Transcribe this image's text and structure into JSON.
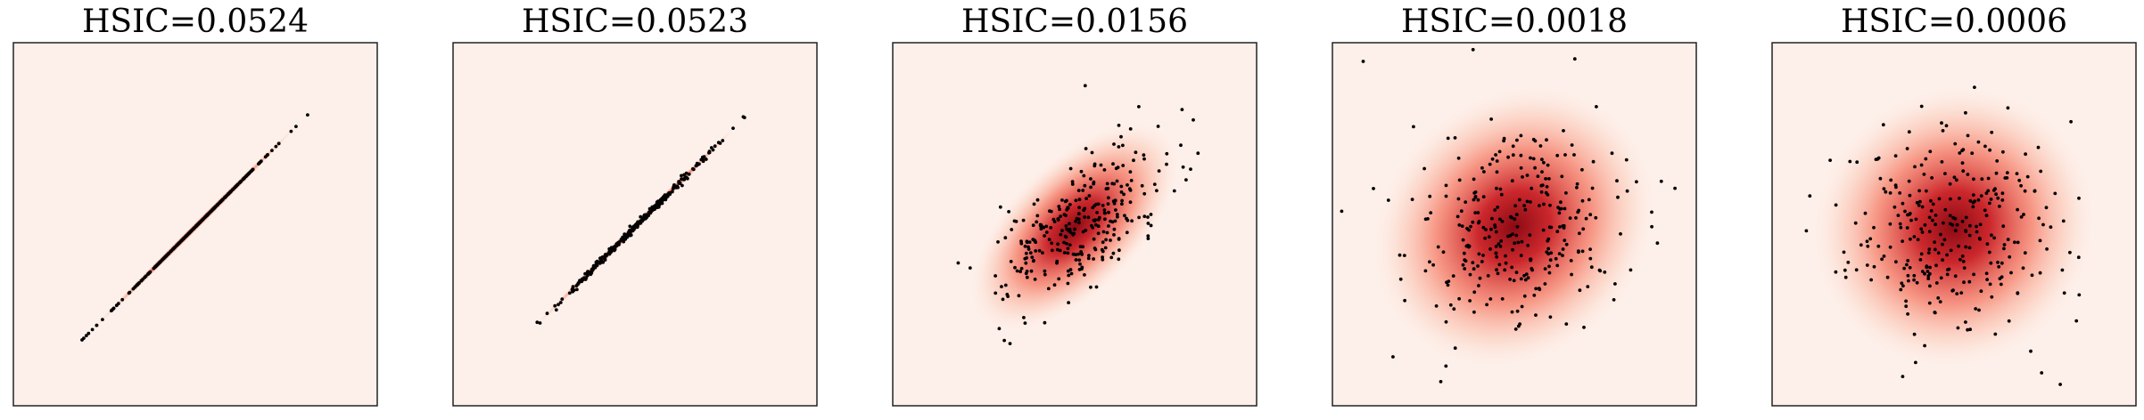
{
  "chart_data": [
    {
      "type": "scatter",
      "title": "HSIC=0.0524",
      "correlation": 1.0,
      "spread": 1.0,
      "num_points": 300,
      "axes_visible": false,
      "grid": false,
      "density_colormap": "Reds"
    },
    {
      "type": "scatter",
      "title": "HSIC=0.0523",
      "correlation": 0.999,
      "spread": 1.0,
      "num_points": 300,
      "axes_visible": false,
      "grid": false,
      "density_colormap": "Reds"
    },
    {
      "type": "scatter",
      "title": "HSIC=0.0156",
      "correlation": 0.6,
      "spread": 1.0,
      "num_points": 300,
      "axes_visible": false,
      "grid": false,
      "density_colormap": "Reds"
    },
    {
      "type": "scatter",
      "title": "HSIC=0.0018",
      "correlation": 0.15,
      "spread": 1.35,
      "num_points": 300,
      "axes_visible": false,
      "grid": false,
      "density_colormap": "Reds"
    },
    {
      "type": "scatter",
      "title": "HSIC=0.0006",
      "correlation": 0.05,
      "spread": 1.35,
      "num_points": 300,
      "axes_visible": false,
      "grid": false,
      "density_colormap": "Reds"
    }
  ],
  "colors": {
    "background": "#fdf0ea",
    "density_low": "#fdf0ea",
    "density_mid": "#f4715a",
    "density_high": "#8b0a14",
    "points": "#000000",
    "frame": "#222222"
  }
}
